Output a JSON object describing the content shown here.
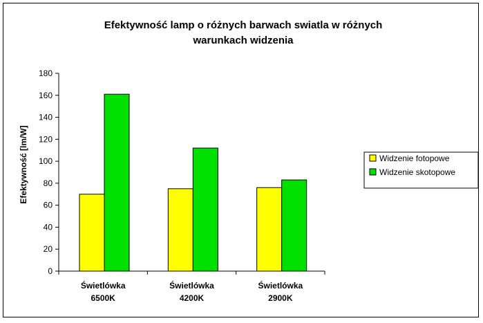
{
  "chart_data": {
    "type": "bar",
    "title": "Efektywność lamp o różnych barwach swiatla w różnych warunkach widzenia",
    "title_lines": [
      "Efektywność lamp o różnych barwach swiatla w różnych",
      "warunkach widzenia"
    ],
    "xlabel": "",
    "ylabel": "Efektywność [lm/W]",
    "ylim": [
      0,
      180
    ],
    "yticks": [
      0,
      20,
      40,
      60,
      80,
      100,
      120,
      140,
      160,
      180
    ],
    "categories": [
      {
        "line1": "Świetlówka",
        "line2": "6500K"
      },
      {
        "line1": "Świetlówka",
        "line2": "4200K"
      },
      {
        "line1": "Świetlówka",
        "line2": "2900K"
      }
    ],
    "series": [
      {
        "name": "Widzenie fotopowe",
        "color": "#ffff00",
        "values": [
          70,
          75,
          76
        ]
      },
      {
        "name": "Widzenie skotopowe",
        "color": "#00e000",
        "values": [
          161,
          112,
          83
        ]
      }
    ],
    "grid": false,
    "legend_position": "right"
  }
}
